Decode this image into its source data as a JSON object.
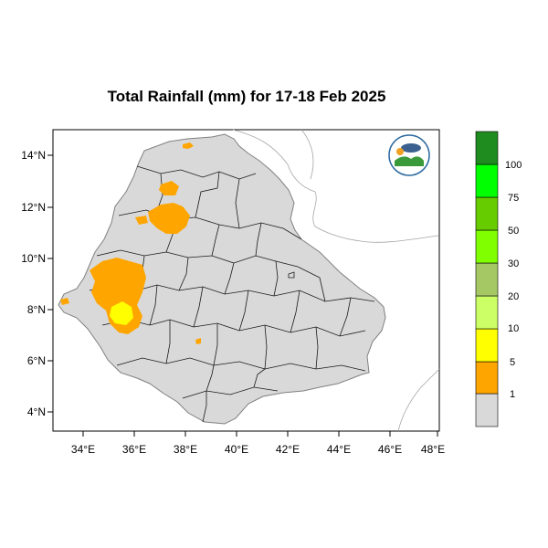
{
  "title": "Total Rainfall (mm) for 17-18 Feb 2025",
  "x_ticks": [
    "34°E",
    "36°E",
    "38°E",
    "40°E",
    "42°E",
    "44°E",
    "46°E",
    "48°E"
  ],
  "y_ticks": [
    "14°N",
    "12°N",
    "10°N",
    "8°N",
    "6°N",
    "4°N"
  ],
  "colorbar": {
    "labels": [
      "1",
      "5",
      "10",
      "20",
      "30",
      "50",
      "75",
      "100"
    ],
    "colors": [
      "#d9d9d9",
      "#ffa500",
      "#ffff00",
      "#ccff66",
      "#a6c864",
      "#7fff00",
      "#66cc00",
      "#00ff00",
      "#00cc00",
      "#1f8c1f"
    ]
  },
  "land_color": "#d9d9d9",
  "rain_colors": {
    "light": "#ffa500",
    "moderate": "#ffff00"
  }
}
